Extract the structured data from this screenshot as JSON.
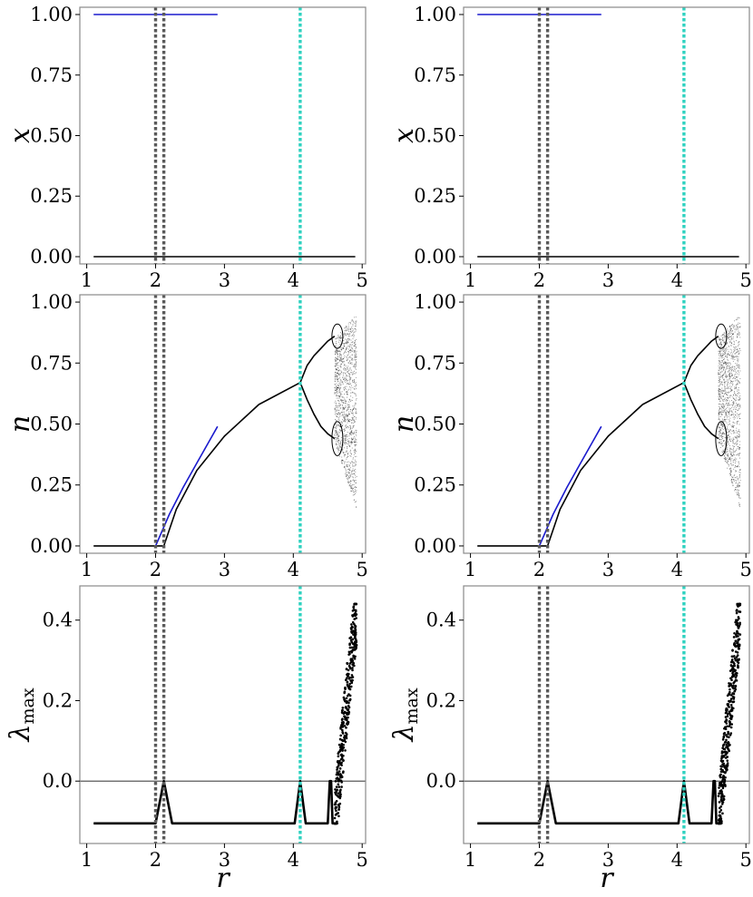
{
  "figure": {
    "layout": "3 rows x 2 columns",
    "styles": {
      "frame_color": "#8a8a8a",
      "data_color": "#000000",
      "blue_color": "#1a1acd",
      "gray_dotted_color": "#5a5a5a",
      "cyan_dotted_color": "#2fd2c0",
      "zero_line_color": "#5a5a5a"
    }
  },
  "chart_data": [
    {
      "panel": "top-left",
      "type": "line",
      "ylabel": "x",
      "xlabel": "",
      "xlim": [
        0.9,
        5.05
      ],
      "ylim": [
        -0.03,
        1.03
      ],
      "xticks": [
        1,
        2,
        3,
        4,
        5
      ],
      "xtick_labels": [
        "1",
        "2",
        "3",
        "4",
        "5"
      ],
      "yticks": [
        0,
        0.25,
        0.5,
        0.75,
        1.0
      ],
      "ytick_labels": [
        "0.00",
        "0.25",
        "0.50",
        "0.75",
        "1.00"
      ],
      "vlines": [
        {
          "x": 2.0,
          "color": "gray"
        },
        {
          "x": 2.12,
          "color": "gray"
        },
        {
          "x": 4.1,
          "color": "cyan"
        }
      ],
      "series": [
        {
          "color": "blue",
          "x": [
            1.1,
            2.9
          ],
          "y": [
            1.0,
            1.0
          ]
        },
        {
          "color": "black",
          "x": [
            1.1,
            4.9
          ],
          "y": [
            0.0,
            0.0
          ]
        }
      ]
    },
    {
      "panel": "top-right",
      "type": "line",
      "ylabel": "x",
      "xlabel": "",
      "xlim": [
        0.9,
        5.05
      ],
      "ylim": [
        -0.03,
        1.03
      ],
      "xticks": [
        1,
        2,
        3,
        4,
        5
      ],
      "xtick_labels": [
        "1",
        "2",
        "3",
        "4",
        "5"
      ],
      "yticks": [
        0,
        0.25,
        0.5,
        0.75,
        1.0
      ],
      "ytick_labels": [
        "0.00",
        "0.25",
        "0.50",
        "0.75",
        "1.00"
      ],
      "vlines": [
        {
          "x": 2.0,
          "color": "gray"
        },
        {
          "x": 2.12,
          "color": "gray"
        },
        {
          "x": 4.1,
          "color": "cyan"
        }
      ],
      "series": [
        {
          "color": "blue",
          "x": [
            1.1,
            2.9
          ],
          "y": [
            1.0,
            1.0
          ]
        },
        {
          "color": "black",
          "x": [
            1.1,
            4.9
          ],
          "y": [
            0.0,
            0.0
          ]
        }
      ]
    },
    {
      "panel": "mid-left",
      "type": "line",
      "ylabel": "n",
      "xlabel": "",
      "xlim": [
        0.9,
        5.05
      ],
      "ylim": [
        -0.03,
        1.03
      ],
      "xticks": [
        1,
        2,
        3,
        4,
        5
      ],
      "xtick_labels": [
        "1",
        "2",
        "3",
        "4",
        "5"
      ],
      "yticks": [
        0,
        0.25,
        0.5,
        0.75,
        1.0
      ],
      "ytick_labels": [
        "0.00",
        "0.25",
        "0.50",
        "0.75",
        "1.00"
      ],
      "vlines": [
        {
          "x": 2.0,
          "color": "gray"
        },
        {
          "x": 2.12,
          "color": "gray"
        },
        {
          "x": 4.1,
          "color": "cyan"
        }
      ],
      "series": [
        {
          "color": "blue",
          "x": [
            2.0,
            2.2,
            2.4,
            2.6,
            2.8,
            2.9
          ],
          "y": [
            0.0,
            0.13,
            0.24,
            0.34,
            0.44,
            0.49
          ]
        },
        {
          "color": "black",
          "x": [
            1.1,
            2.05,
            2.12,
            2.3,
            2.6,
            3.0,
            3.5,
            4.1
          ],
          "y": [
            0.0,
            0.0,
            0.0,
            0.15,
            0.31,
            0.45,
            0.58,
            0.67
          ]
        },
        {
          "color": "black",
          "x": [
            4.1,
            4.2,
            4.3,
            4.4,
            4.5,
            4.6
          ],
          "y": [
            0.67,
            0.74,
            0.78,
            0.81,
            0.84,
            0.86
          ]
        },
        {
          "color": "black",
          "x": [
            4.1,
            4.2,
            4.3,
            4.4,
            4.5,
            4.6
          ],
          "y": [
            0.67,
            0.6,
            0.54,
            0.49,
            0.46,
            0.44
          ]
        }
      ],
      "scatter_region": {
        "x_range": [
          4.6,
          4.92
        ],
        "y_top": 0.95,
        "y_bottom_start": 0.43,
        "y_bottom_end": 0.15
      }
    },
    {
      "panel": "mid-right",
      "type": "line",
      "ylabel": "n",
      "xlabel": "",
      "xlim": [
        0.9,
        5.05
      ],
      "ylim": [
        -0.03,
        1.03
      ],
      "xticks": [
        1,
        2,
        3,
        4,
        5
      ],
      "xtick_labels": [
        "1",
        "2",
        "3",
        "4",
        "5"
      ],
      "yticks": [
        0,
        0.25,
        0.5,
        0.75,
        1.0
      ],
      "ytick_labels": [
        "0.00",
        "0.25",
        "0.50",
        "0.75",
        "1.00"
      ],
      "vlines": [
        {
          "x": 2.0,
          "color": "gray"
        },
        {
          "x": 2.12,
          "color": "gray"
        },
        {
          "x": 4.1,
          "color": "cyan"
        }
      ],
      "series": [
        {
          "color": "blue",
          "x": [
            2.0,
            2.2,
            2.4,
            2.6,
            2.8,
            2.9
          ],
          "y": [
            0.0,
            0.13,
            0.24,
            0.34,
            0.44,
            0.49
          ]
        },
        {
          "color": "black",
          "x": [
            1.1,
            2.05,
            2.12,
            2.3,
            2.6,
            3.0,
            3.5,
            4.1
          ],
          "y": [
            0.0,
            0.0,
            0.0,
            0.15,
            0.31,
            0.45,
            0.58,
            0.67
          ]
        },
        {
          "color": "black",
          "x": [
            4.1,
            4.2,
            4.3,
            4.4,
            4.5,
            4.6
          ],
          "y": [
            0.67,
            0.74,
            0.78,
            0.81,
            0.84,
            0.86
          ]
        },
        {
          "color": "black",
          "x": [
            4.1,
            4.2,
            4.3,
            4.4,
            4.5,
            4.6
          ],
          "y": [
            0.67,
            0.6,
            0.54,
            0.49,
            0.46,
            0.44
          ]
        }
      ],
      "scatter_region": {
        "x_range": [
          4.6,
          4.92
        ],
        "y_top": 0.95,
        "y_bottom_start": 0.43,
        "y_bottom_end": 0.15
      }
    },
    {
      "panel": "bottom-left",
      "type": "line",
      "ylabel": "λmax",
      "xlabel": "r",
      "xlim": [
        0.9,
        5.05
      ],
      "ylim": [
        -0.155,
        0.485
      ],
      "xticks": [
        1,
        2,
        3,
        4,
        5
      ],
      "xtick_labels": [
        "1",
        "2",
        "3",
        "4",
        "5"
      ],
      "yticks": [
        0.0,
        0.2,
        0.4
      ],
      "ytick_labels": [
        "0.0",
        "0.2",
        "0.4"
      ],
      "hline": 0.0,
      "vlines": [
        {
          "x": 2.0,
          "color": "gray"
        },
        {
          "x": 2.12,
          "color": "gray"
        },
        {
          "x": 4.1,
          "color": "cyan"
        }
      ],
      "series": [
        {
          "color": "black",
          "x": [
            1.1,
            2.0,
            2.12,
            2.24,
            4.02,
            4.1,
            4.18,
            4.5,
            4.53,
            4.55,
            4.57,
            4.6
          ],
          "y": [
            -0.105,
            -0.105,
            0.0,
            -0.105,
            -0.105,
            0.0,
            -0.105,
            -0.105,
            0.0,
            0.0,
            -0.105,
            -0.105
          ]
        }
      ],
      "scatter_region": {
        "x_range": [
          4.6,
          4.92
        ],
        "y_low": -0.105,
        "y_high": 0.44
      }
    },
    {
      "panel": "bottom-right",
      "type": "line",
      "ylabel": "λmax",
      "xlabel": "r",
      "xlim": [
        0.9,
        5.05
      ],
      "ylim": [
        -0.155,
        0.485
      ],
      "xticks": [
        1,
        2,
        3,
        4,
        5
      ],
      "xtick_labels": [
        "1",
        "2",
        "3",
        "4",
        "5"
      ],
      "yticks": [
        0.0,
        0.2,
        0.4
      ],
      "ytick_labels": [
        "0.0",
        "0.2",
        "0.4"
      ],
      "hline": 0.0,
      "vlines": [
        {
          "x": 2.0,
          "color": "gray"
        },
        {
          "x": 2.12,
          "color": "gray"
        },
        {
          "x": 4.1,
          "color": "cyan"
        }
      ],
      "series": [
        {
          "color": "black",
          "x": [
            1.1,
            2.0,
            2.12,
            2.24,
            4.02,
            4.1,
            4.18,
            4.5,
            4.53,
            4.55,
            4.57,
            4.6
          ],
          "y": [
            -0.105,
            -0.105,
            0.0,
            -0.105,
            -0.105,
            0.0,
            -0.105,
            -0.105,
            0.0,
            0.0,
            -0.105,
            -0.105
          ]
        }
      ],
      "scatter_region": {
        "x_range": [
          4.6,
          4.92
        ],
        "y_low": -0.105,
        "y_high": 0.44
      }
    }
  ]
}
